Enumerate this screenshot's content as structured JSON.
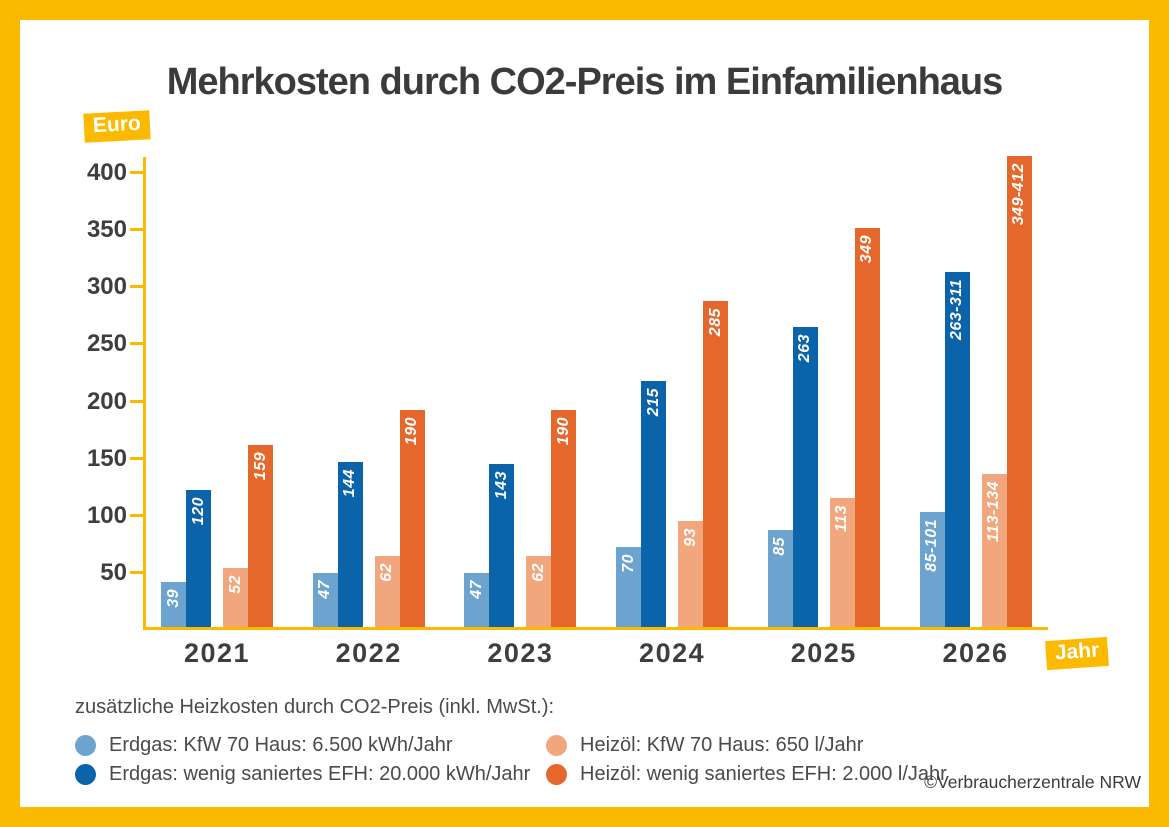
{
  "chart_data": {
    "type": "bar",
    "title": "Mehrkosten durch CO2-Preis im Einfamilienhaus",
    "y_unit_label": "Euro",
    "x_unit_label": "Jahr",
    "ylim": [
      0,
      414
    ],
    "y_ticks": [
      50,
      100,
      150,
      200,
      250,
      300,
      350,
      400
    ],
    "grid": false,
    "legend_position": "bottom",
    "legend_caption": "zusätzliche Heizkosten durch CO2-Preis (inkl. MwSt.):",
    "categories": [
      "2021",
      "2022",
      "2023",
      "2024",
      "2025",
      "2026"
    ],
    "series": [
      {
        "key": "erdgas-kfw70",
        "name": "Erdgas: KfW 70 Haus: 6.500 kWh/Jahr",
        "color": "#6CA3CF",
        "bar_labels": [
          "39",
          "47",
          "47",
          "70",
          "85",
          "85-101"
        ],
        "values": [
          39,
          47,
          47,
          70,
          85,
          101
        ]
      },
      {
        "key": "erdgas-efh",
        "name": "Erdgas: wenig saniertes EFH: 20.000 kWh/Jahr",
        "color": "#0B63A9",
        "bar_labels": [
          "120",
          "144",
          "143",
          "215",
          "263",
          "263-311"
        ],
        "values": [
          120,
          144,
          143,
          215,
          263,
          311
        ]
      },
      {
        "key": "heizoel-kfw70",
        "name": "Heizöl: KfW 70 Haus: 650 l/Jahr",
        "color": "#F2A67E",
        "bar_labels": [
          "52",
          "62",
          "62",
          "93",
          "113",
          "113-134"
        ],
        "values": [
          52,
          62,
          62,
          93,
          113,
          134
        ]
      },
      {
        "key": "heizoel-efh",
        "name": "Heizöl: wenig saniertes EFH: 2.000 l/Jahr",
        "color": "#E5672B",
        "bar_labels": [
          "159",
          "190",
          "190",
          "285",
          "349",
          "349-412"
        ],
        "values": [
          159,
          190,
          190,
          285,
          349,
          412
        ]
      }
    ],
    "credit": "©Verbraucherzentrale NRW"
  },
  "colors": {
    "frame_yellow": "#FBBA00",
    "text_dark": "#3B3B3A",
    "bar_label_text": "#FFFFFF"
  }
}
